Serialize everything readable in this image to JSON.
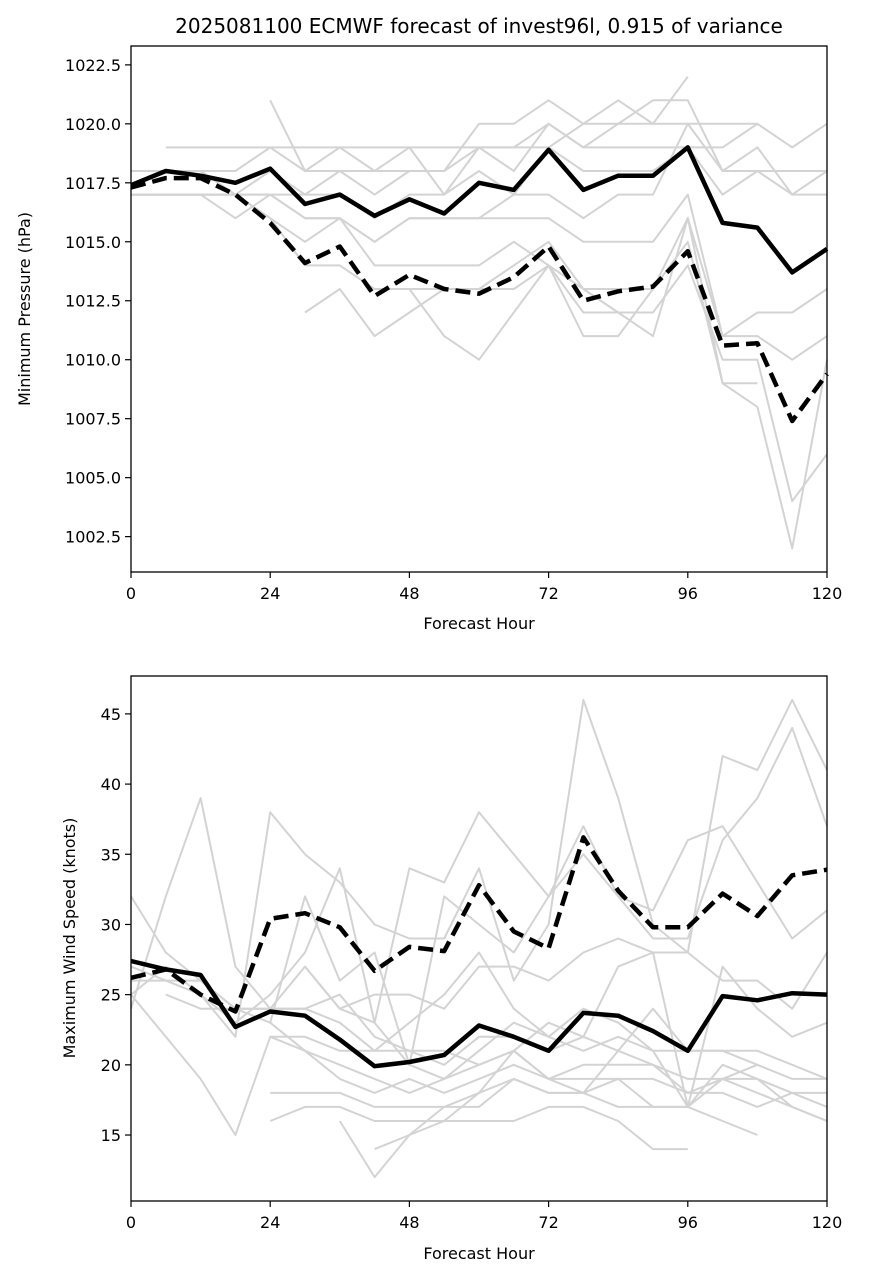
{
  "title": "2025081100 ECMWF forecast of invest96l, 0.915 of variance",
  "colors": {
    "members": "#d3d3d3",
    "mean": "#000000",
    "frame": "#000000"
  },
  "chart_data": [
    {
      "type": "line",
      "ylabel": "Minimum Pressure (hPa)",
      "xlabel": "Forecast Hour",
      "xlim": [
        0,
        120
      ],
      "ylim": [
        1001.0,
        1023.3
      ],
      "xticks": [
        0,
        24,
        48,
        72,
        96,
        120
      ],
      "xtick_labels": [
        "0",
        "24",
        "48",
        "72",
        "96",
        "120"
      ],
      "yticks": [
        1002.5,
        1005.0,
        1007.5,
        1010.0,
        1012.5,
        1015.0,
        1017.5,
        1020.0,
        1022.5
      ],
      "ytick_labels": [
        "1002.5",
        "1005.0",
        "1007.5",
        "1010.0",
        "1012.5",
        "1015.0",
        "1017.5",
        "1020.0",
        "1022.5"
      ],
      "x": [
        0,
        6,
        12,
        18,
        24,
        30,
        36,
        42,
        48,
        54,
        60,
        66,
        72,
        78,
        84,
        90,
        96,
        102,
        108,
        114,
        120
      ],
      "series": [
        {
          "style": "member",
          "values": [
            null,
            1019,
            1019,
            1019,
            1019,
            1019,
            1019,
            1019,
            1019,
            1019,
            1019,
            1019,
            1019,
            1020,
            1020,
            1020,
            1020,
            1020,
            1020,
            null,
            null
          ]
        },
        {
          "style": "member",
          "values": [
            null,
            null,
            null,
            null,
            1021,
            1018,
            1018,
            1018,
            1018,
            1018,
            1020,
            1020,
            1021,
            1020,
            1021,
            1020,
            1022,
            null,
            null,
            null,
            null
          ]
        },
        {
          "style": "member",
          "values": [
            1018,
            1018,
            1018,
            1018,
            1019,
            1018,
            1019,
            1018,
            1019,
            1017,
            1019,
            1019,
            1020,
            1019,
            1020,
            1021,
            1021,
            1018,
            1018,
            1018,
            1018
          ]
        },
        {
          "style": "member",
          "values": [
            1018,
            1018,
            1018,
            1017,
            1018,
            1017,
            1018,
            1017,
            1018,
            1018,
            1019,
            1018,
            1020,
            1019,
            1019,
            1019,
            1019,
            1019,
            1020,
            1019,
            1020
          ]
        },
        {
          "style": "member",
          "values": [
            1017,
            1017,
            1017,
            1017,
            1017,
            1017,
            1017,
            1016,
            1017,
            1017,
            1018,
            1017,
            1019,
            1018,
            1018,
            1018,
            1019,
            1017,
            1018,
            1017,
            1017
          ]
        },
        {
          "style": "member",
          "values": [
            1017,
            1017,
            1017,
            1017,
            1017,
            1016,
            1016,
            1015,
            1016,
            1016,
            1016,
            1017,
            1017,
            1016,
            1017,
            1017,
            1020,
            1018,
            1019,
            1017,
            1018
          ]
        },
        {
          "style": "member",
          "values": [
            1017,
            1017,
            1017,
            1016,
            1017,
            1016,
            1016,
            1015,
            1016,
            1016,
            1016,
            1016,
            1016,
            1015,
            1015,
            1015,
            1017,
            1011,
            1012,
            1012,
            1013
          ]
        },
        {
          "style": "member",
          "values": [
            1017,
            1017,
            1017,
            1017,
            1016,
            1015,
            1016,
            1014,
            1014,
            1014,
            1014,
            1015,
            1014,
            1013,
            1013,
            1013,
            1016,
            1011,
            1011,
            1010,
            1011
          ]
        },
        {
          "style": "member",
          "values": [
            1017,
            1017,
            1017,
            1017,
            1016,
            1014,
            1014,
            1013,
            1013,
            1013,
            1013,
            1014,
            1015,
            1013,
            1012,
            1012,
            1014,
            1010,
            1010,
            1004,
            1006
          ]
        },
        {
          "style": "member",
          "values": [
            null,
            null,
            null,
            null,
            null,
            1012,
            1013,
            1011,
            1012,
            1013,
            1013,
            1013,
            1014,
            1012,
            1012,
            1011,
            1016,
            1009,
            1008,
            1002,
            1010
          ]
        },
        {
          "style": "member",
          "values": [
            null,
            null,
            null,
            null,
            null,
            null,
            null,
            1013,
            1013,
            1011,
            1010,
            1012,
            1014,
            1011,
            1011,
            1013,
            1015,
            1009,
            1009,
            null,
            null
          ]
        },
        {
          "style": "mean",
          "values": [
            1017.4,
            1018.0,
            1017.8,
            1017.5,
            1018.1,
            1016.6,
            1017.0,
            1016.1,
            1016.8,
            1016.2,
            1017.5,
            1017.2,
            1018.9,
            1017.2,
            1017.8,
            1017.8,
            1019.0,
            1015.8,
            1015.6,
            1013.7,
            1014.7
          ]
        },
        {
          "style": "median",
          "values": [
            1017.3,
            1017.7,
            1017.7,
            1017.0,
            1015.8,
            1014.1,
            1014.8,
            1012.7,
            1013.6,
            1013.0,
            1012.8,
            1013.5,
            1014.8,
            1012.5,
            1012.9,
            1013.1,
            1014.6,
            1010.6,
            1010.7,
            1007.4,
            1009.4
          ]
        }
      ]
    },
    {
      "type": "line",
      "ylabel": "Maximum Wind Speed (knots)",
      "xlabel": "Forecast Hour",
      "xlim": [
        0,
        120
      ],
      "ylim": [
        10.3,
        47.7
      ],
      "xticks": [
        0,
        24,
        48,
        72,
        96,
        120
      ],
      "xtick_labels": [
        "0",
        "24",
        "48",
        "72",
        "96",
        "120"
      ],
      "yticks": [
        15,
        20,
        25,
        30,
        35,
        40,
        45
      ],
      "ytick_labels": [
        "15",
        "20",
        "25",
        "30",
        "35",
        "40",
        "45"
      ],
      "x": [
        0,
        6,
        12,
        18,
        24,
        30,
        36,
        42,
        48,
        54,
        60,
        66,
        72,
        78,
        84,
        90,
        96,
        102,
        108,
        114,
        120
      ],
      "series": [
        {
          "style": "member",
          "values": [
            24,
            32,
            39,
            27,
            24,
            24,
            23,
            21,
            23,
            25,
            28,
            24,
            22,
            24,
            23,
            21,
            17,
            19,
            18,
            17,
            16
          ]
        },
        {
          "style": "member",
          "values": [
            25,
            27,
            25,
            22,
            38,
            35,
            33,
            30,
            29,
            29,
            34,
            26,
            30,
            46,
            39,
            30,
            28,
            42,
            41,
            46,
            41
          ]
        },
        {
          "style": "member",
          "values": [
            32,
            28,
            26,
            24,
            23,
            32,
            26,
            28,
            20,
            32,
            30,
            28,
            32,
            35,
            32,
            31,
            36,
            37,
            33,
            29,
            31
          ]
        },
        {
          "style": "member",
          "values": [
            27,
            26,
            25,
            23,
            25,
            28,
            34,
            23,
            34,
            33,
            38,
            35,
            32,
            37,
            32,
            29,
            29,
            36,
            39,
            44,
            37
          ]
        },
        {
          "style": "member",
          "values": [
            26,
            26,
            26,
            24,
            24,
            27,
            24,
            25,
            25,
            24,
            27,
            27,
            26,
            28,
            29,
            28,
            28,
            26,
            26,
            24,
            28
          ]
        },
        {
          "style": "member",
          "values": [
            25,
            22,
            19,
            15,
            22,
            22,
            21,
            21,
            21,
            20,
            22,
            22,
            21,
            22,
            27,
            28,
            17,
            27,
            24,
            22,
            23
          ]
        },
        {
          "style": "member",
          "values": [
            null,
            25,
            24,
            24,
            24,
            24,
            25,
            22,
            21,
            21,
            20,
            21,
            23,
            22,
            21,
            24,
            21,
            21,
            21,
            20,
            19
          ]
        },
        {
          "style": "member",
          "values": [
            null,
            null,
            null,
            null,
            null,
            27,
            24,
            23,
            20,
            19,
            21,
            23,
            22,
            21,
            22,
            21,
            21,
            21,
            20,
            19,
            19
          ]
        },
        {
          "style": "member",
          "values": [
            null,
            null,
            null,
            null,
            23,
            21,
            20,
            19,
            18,
            19,
            20,
            21,
            19,
            20,
            20,
            20,
            19,
            19,
            19,
            18,
            17
          ]
        },
        {
          "style": "member",
          "values": [
            null,
            null,
            null,
            null,
            22,
            21,
            19,
            18,
            19,
            18,
            19,
            20,
            19,
            19,
            19,
            19,
            18,
            18,
            17,
            18,
            18
          ]
        },
        {
          "style": "member",
          "values": [
            null,
            null,
            null,
            null,
            18,
            18,
            18,
            17,
            17,
            17,
            18,
            19,
            18,
            18,
            19,
            17,
            17,
            20,
            19,
            17,
            16
          ]
        },
        {
          "style": "member",
          "values": [
            null,
            null,
            null,
            null,
            16,
            17,
            17,
            16,
            16,
            16,
            16,
            16,
            17,
            17,
            16,
            14,
            14,
            null,
            null,
            null,
            null
          ]
        },
        {
          "style": "member",
          "values": [
            null,
            null,
            null,
            null,
            null,
            null,
            16,
            12,
            15,
            17,
            17,
            19,
            18,
            18,
            17,
            17,
            17,
            16,
            15,
            null,
            null
          ]
        },
        {
          "style": "member",
          "values": [
            null,
            null,
            null,
            null,
            null,
            null,
            null,
            14,
            15,
            16,
            18,
            21,
            19,
            18,
            21,
            20,
            18,
            19,
            20,
            null,
            null
          ]
        },
        {
          "style": "mean",
          "values": [
            27.4,
            26.8,
            26.4,
            22.7,
            23.8,
            23.5,
            21.8,
            19.9,
            20.2,
            20.7,
            22.8,
            22.0,
            21.0,
            23.7,
            23.5,
            22.4,
            21.0,
            24.9,
            24.6,
            25.1,
            25.0
          ]
        },
        {
          "style": "median",
          "values": [
            26.2,
            26.8,
            25.0,
            23.8,
            30.4,
            30.8,
            29.8,
            26.7,
            28.4,
            28.1,
            32.8,
            29.5,
            28.3,
            36.2,
            32.4,
            29.8,
            29.8,
            32.2,
            30.6,
            33.5,
            33.9
          ]
        }
      ]
    }
  ]
}
